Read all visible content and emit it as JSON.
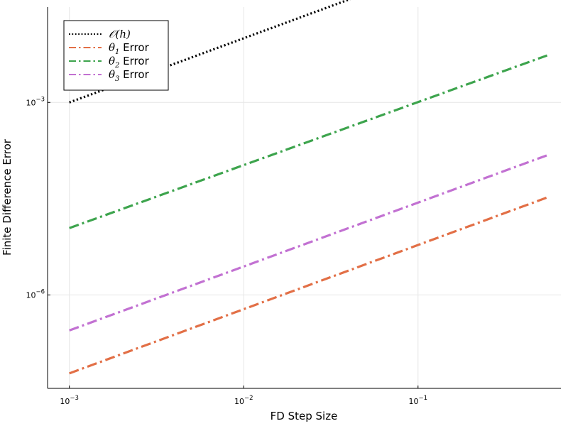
{
  "chart_data": {
    "type": "line",
    "title": "",
    "xlabel": "FD Step Size",
    "ylabel": "Finite Difference Error",
    "xscale": "log",
    "yscale": "log",
    "xlim": [
      0.00075,
      0.66
    ],
    "ylim": [
      3.5e-08,
      0.0306
    ],
    "xticks": [
      {
        "value": 0.001,
        "base": "10",
        "exp": "−3"
      },
      {
        "value": 0.01,
        "base": "10",
        "exp": "−2"
      },
      {
        "value": 0.1,
        "base": "10",
        "exp": "−1"
      }
    ],
    "yticks": [
      {
        "value": 0.001,
        "base": "10",
        "exp": "−3"
      },
      {
        "value": 1e-06,
        "base": "10",
        "exp": "−6"
      }
    ],
    "grid": true,
    "legend_position": "top-left",
    "series": [
      {
        "name": "𝒪(h)",
        "legend_main": "𝒪(",
        "legend_var": "h",
        "legend_close": ")",
        "legend_suffix": "",
        "color": "#000000",
        "style": "dotted",
        "x": [
          0.001,
          0.55
        ],
        "y": [
          0.001,
          0.55
        ]
      },
      {
        "name": "θ1 Error",
        "legend_main": "θ",
        "legend_sub": "1",
        "legend_suffix": " Error",
        "color": "#e26f46",
        "style": "dashdot",
        "x": [
          0.001,
          0.55
        ],
        "y": [
          6e-08,
          3.3e-05
        ]
      },
      {
        "name": "θ2 Error",
        "legend_main": "θ",
        "legend_sub": "2",
        "legend_suffix": " Error",
        "color": "#3da44d",
        "style": "dashdot",
        "x": [
          0.001,
          0.55
        ],
        "y": [
          1.1e-05,
          0.0054
        ]
      },
      {
        "name": "θ3 Error",
        "legend_main": "θ",
        "legend_sub": "3",
        "legend_suffix": " Error",
        "color": "#c271d2",
        "style": "dashdot",
        "x": [
          0.001,
          0.55
        ],
        "y": [
          2.8e-07,
          0.00015
        ]
      }
    ]
  }
}
